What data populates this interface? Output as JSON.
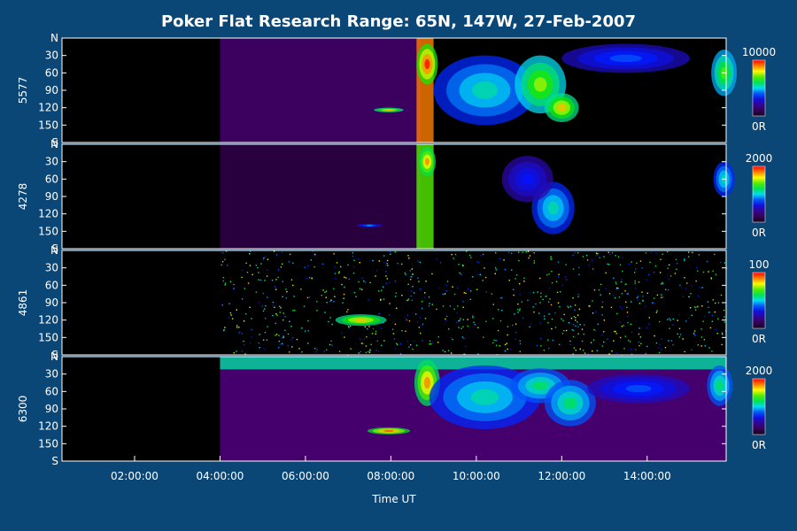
{
  "chart_data": {
    "type": "heatmap",
    "title": "Poker Flat Research Range: 65N, 147W, 27-Feb-2007",
    "xlabel": "Time UT",
    "x_ticks": [
      "02:00:00",
      "04:00:00",
      "06:00:00",
      "08:00:00",
      "10:00:00",
      "12:00:00",
      "14:00:00"
    ],
    "x_range_hours": [
      0.3,
      15.85
    ],
    "y_ticks": [
      "N",
      "30",
      "60",
      "90",
      "120",
      "150",
      "S"
    ],
    "y_range": [
      0,
      180
    ],
    "data_start_hour": 4.0,
    "panels": [
      {
        "ylabel": "5577",
        "cbar_max_label": "10000",
        "cbar_min_label": "0R",
        "features": [
          {
            "type": "background",
            "t0": 4.0,
            "t1": 8.7,
            "intensity": 0.12
          },
          {
            "type": "blob",
            "t": 7.95,
            "angle": 124,
            "dt": 0.35,
            "da": 4,
            "intensity": 0.85
          },
          {
            "type": "band",
            "t0": 8.6,
            "t1": 9.0,
            "a0": 0,
            "a1": 180,
            "intensity": 0.9
          },
          {
            "type": "blob",
            "t": 8.85,
            "angle": 45,
            "dt": 0.25,
            "da": 35,
            "intensity": 1.0
          },
          {
            "type": "blob",
            "t": 10.2,
            "angle": 90,
            "dt": 1.2,
            "da": 60,
            "intensity": 0.55
          },
          {
            "type": "blob",
            "t": 11.5,
            "angle": 80,
            "dt": 0.6,
            "da": 50,
            "intensity": 0.75
          },
          {
            "type": "blob",
            "t": 12.0,
            "angle": 120,
            "dt": 0.4,
            "da": 25,
            "intensity": 0.85
          },
          {
            "type": "blob",
            "t": 13.5,
            "angle": 35,
            "dt": 1.5,
            "da": 25,
            "intensity": 0.4
          },
          {
            "type": "blob",
            "t": 15.8,
            "angle": 60,
            "dt": 0.3,
            "da": 40,
            "intensity": 0.7
          }
        ]
      },
      {
        "ylabel": "4278",
        "cbar_max_label": "2000",
        "cbar_min_label": "0R",
        "features": [
          {
            "type": "background",
            "t0": 4.0,
            "t1": 8.7,
            "intensity": 0.06
          },
          {
            "type": "blob",
            "t": 7.5,
            "angle": 140,
            "dt": 0.3,
            "da": 3,
            "intensity": 0.45
          },
          {
            "type": "band",
            "t0": 8.6,
            "t1": 9.0,
            "a0": 0,
            "a1": 180,
            "intensity": 0.7
          },
          {
            "type": "blob",
            "t": 8.85,
            "angle": 30,
            "dt": 0.2,
            "da": 25,
            "intensity": 0.9
          },
          {
            "type": "blob",
            "t": 11.8,
            "angle": 110,
            "dt": 0.5,
            "da": 45,
            "intensity": 0.55
          },
          {
            "type": "blob",
            "t": 11.2,
            "angle": 60,
            "dt": 0.6,
            "da": 40,
            "intensity": 0.35
          },
          {
            "type": "blob",
            "t": 15.8,
            "angle": 60,
            "dt": 0.25,
            "da": 30,
            "intensity": 0.55
          }
        ]
      },
      {
        "ylabel": "4861",
        "cbar_max_label": "100",
        "cbar_min_label": "0R",
        "features": [
          {
            "type": "noise",
            "t0": 4.0,
            "t1": 15.85,
            "intensity": 0.35
          },
          {
            "type": "blob",
            "t": 7.3,
            "angle": 120,
            "dt": 0.6,
            "da": 10,
            "intensity": 0.85
          }
        ]
      },
      {
        "ylabel": "6300",
        "cbar_max_label": "2000",
        "cbar_min_label": "0R",
        "features": [
          {
            "type": "background",
            "t0": 4.0,
            "t1": 15.85,
            "intensity": 0.15
          },
          {
            "type": "band",
            "t0": 4.0,
            "t1": 15.85,
            "a0": 0,
            "a1": 22,
            "intensity": 0.55
          },
          {
            "type": "blob",
            "t": 7.95,
            "angle": 128,
            "dt": 0.5,
            "da": 6,
            "intensity": 0.95
          },
          {
            "type": "blob",
            "t": 8.85,
            "angle": 45,
            "dt": 0.3,
            "da": 40,
            "intensity": 0.9
          },
          {
            "type": "blob",
            "t": 10.2,
            "angle": 70,
            "dt": 1.3,
            "da": 55,
            "intensity": 0.55
          },
          {
            "type": "blob",
            "t": 11.5,
            "angle": 50,
            "dt": 0.7,
            "da": 30,
            "intensity": 0.6
          },
          {
            "type": "blob",
            "t": 12.2,
            "angle": 80,
            "dt": 0.6,
            "da": 40,
            "intensity": 0.6
          },
          {
            "type": "blob",
            "t": 13.8,
            "angle": 55,
            "dt": 1.2,
            "da": 25,
            "intensity": 0.4
          },
          {
            "type": "blob",
            "t": 15.7,
            "angle": 50,
            "dt": 0.3,
            "da": 35,
            "intensity": 0.6
          }
        ]
      }
    ]
  }
}
